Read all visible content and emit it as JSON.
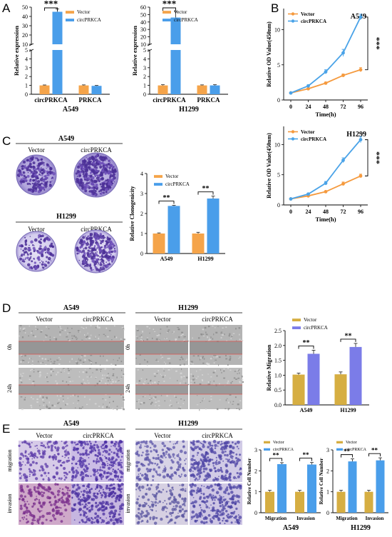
{
  "panels": {
    "A": {
      "letter": "A"
    },
    "B": {
      "letter": "B"
    },
    "C": {
      "letter": "C",
      "headers": [
        "Vector",
        "circPRKCA"
      ],
      "cells": [
        "A549",
        "H1299"
      ]
    },
    "D": {
      "letter": "D",
      "cells": [
        "A549",
        "H1299"
      ],
      "headers": [
        "Vector",
        "circPRKCA"
      ],
      "rows": [
        "0h",
        "24h"
      ]
    },
    "E": {
      "letter": "E",
      "cells": [
        "A549",
        "H1299"
      ],
      "headers": [
        "Vector",
        "circPRKCA"
      ],
      "rows": [
        "migration",
        "invasion"
      ]
    }
  },
  "colors": {
    "vector": "#F5A44A",
    "circ": "#4A9EEA",
    "vector_d": "#D6AE42",
    "circ_d": "#7B7CE8",
    "line_vector": "#F59A3E",
    "line_circ": "#4AA3E8"
  },
  "chart_data": [
    {
      "id": "A-left",
      "type": "bar",
      "title": "",
      "subtitle": "A549",
      "xlabel": "",
      "ylabel": "Relative expression",
      "categories": [
        "circPRKCA",
        "PRKCA"
      ],
      "series": [
        {
          "name": "Vector",
          "values": [
            1.0,
            1.0
          ],
          "errors": [
            0.05,
            0.06
          ]
        },
        {
          "name": "circPRKCA",
          "values": [
            45,
            0.95
          ],
          "errors": [
            3,
            0.05
          ]
        }
      ],
      "broken_axis": true,
      "ylim_low": [
        0,
        5
      ],
      "ylim_high": [
        10,
        50
      ],
      "yticks_low": [
        0,
        1,
        2,
        3,
        4,
        5
      ],
      "yticks_high": [
        10,
        20,
        30,
        40,
        50
      ],
      "significance": "***",
      "legend": "top-right"
    },
    {
      "id": "A-right",
      "type": "bar",
      "title": "",
      "subtitle": "H1299",
      "xlabel": "",
      "ylabel": "Relative expression",
      "categories": [
        "circPRKCA",
        "PRKCA"
      ],
      "series": [
        {
          "name": "Vector",
          "values": [
            1.0,
            1.0
          ],
          "errors": [
            0.08,
            0.06
          ]
        },
        {
          "name": "circPRKCA",
          "values": [
            46,
            1.0
          ],
          "errors": [
            8,
            0.08
          ]
        }
      ],
      "broken_axis": true,
      "ylim_low": [
        0,
        5
      ],
      "ylim_high": [
        10,
        60
      ],
      "yticks_low": [
        0,
        1,
        2,
        3,
        4,
        5
      ],
      "yticks_high": [
        10,
        20,
        30,
        40,
        50,
        60
      ],
      "significance": "***",
      "legend": "top-right"
    },
    {
      "id": "B-top",
      "type": "line",
      "title": "A549",
      "xlabel": "Time(h)",
      "ylabel": "Relative OD Value(450nm)",
      "x": [
        0,
        24,
        48,
        72,
        96
      ],
      "ylim": [
        0,
        13
      ],
      "yticks": [
        0,
        5,
        10
      ],
      "series": [
        {
          "name": "Vector",
          "values": [
            1.0,
            1.6,
            2.4,
            3.5,
            4.3
          ],
          "errors": [
            0.05,
            0.1,
            0.15,
            0.2,
            0.3
          ]
        },
        {
          "name": "circPRKCA",
          "values": [
            1.0,
            2.0,
            4.0,
            6.7,
            11.8
          ],
          "errors": [
            0.05,
            0.15,
            0.3,
            0.5,
            0.4
          ]
        }
      ],
      "significance": "***",
      "legend": "top-left"
    },
    {
      "id": "B-bottom",
      "type": "line",
      "title": "H1299",
      "xlabel": "Time(h)",
      "ylabel": "Relative OD Value(450nm)",
      "x": [
        0,
        24,
        48,
        72,
        96
      ],
      "ylim": [
        0,
        13
      ],
      "yticks": [
        0,
        5,
        10
      ],
      "series": [
        {
          "name": "Vector",
          "values": [
            1.0,
            1.5,
            2.2,
            3.5,
            4.8
          ],
          "errors": [
            0.05,
            0.1,
            0.15,
            0.3,
            0.3
          ]
        },
        {
          "name": "circPRKCA",
          "values": [
            1.0,
            1.8,
            3.6,
            7.4,
            10.8
          ],
          "errors": [
            0.05,
            0.15,
            0.3,
            0.4,
            0.5
          ]
        }
      ],
      "significance": "***",
      "legend": "top-left"
    },
    {
      "id": "C-chart",
      "type": "bar",
      "title": "",
      "xlabel": "",
      "ylabel": "Relative Clonogenicity",
      "categories": [
        "A549",
        "H1299"
      ],
      "ylim": [
        0,
        4
      ],
      "yticks": [
        0,
        1,
        2,
        3,
        4
      ],
      "series": [
        {
          "name": "Vector",
          "values": [
            1.0,
            1.0
          ],
          "errors": [
            0.03,
            0.06
          ]
        },
        {
          "name": "circPRKCA",
          "values": [
            2.38,
            2.75
          ],
          "errors": [
            0.03,
            0.12
          ]
        }
      ],
      "significance": [
        "**",
        "**"
      ],
      "legend": "top-left"
    },
    {
      "id": "D-chart",
      "type": "bar",
      "title": "",
      "xlabel": "",
      "ylabel": "Relative Migration",
      "categories": [
        "A549",
        "H1299"
      ],
      "ylim": [
        0,
        2.5
      ],
      "yticks": [
        0.0,
        0.5,
        1.0,
        1.5,
        2.0,
        2.5
      ],
      "series": [
        {
          "name": "Vector",
          "values": [
            1.02,
            1.03
          ],
          "errors": [
            0.05,
            0.08
          ]
        },
        {
          "name": "circPRKCA",
          "values": [
            1.72,
            1.95
          ],
          "errors": [
            0.12,
            0.12
          ]
        }
      ],
      "significance": [
        "**",
        "**"
      ],
      "legend": "top-left"
    },
    {
      "id": "E-left",
      "type": "bar",
      "title": "",
      "subtitle": "A549",
      "xlabel": "",
      "ylabel": "Relative Cell Number",
      "categories": [
        "Migration",
        "Invasion"
      ],
      "ylim": [
        0,
        3
      ],
      "yticks": [
        0,
        1,
        2,
        3
      ],
      "series": [
        {
          "name": "Vector",
          "values": [
            1.0,
            1.0
          ],
          "errors": [
            0.07,
            0.07
          ]
        },
        {
          "name": "circPRKCA",
          "values": [
            2.32,
            2.3
          ],
          "errors": [
            0.07,
            0.1
          ]
        }
      ],
      "significance": [
        "**",
        "**"
      ],
      "legend": "top-left"
    },
    {
      "id": "E-right",
      "type": "bar",
      "title": "",
      "subtitle": "H1299",
      "xlabel": "",
      "ylabel": "Relative Cell Number",
      "categories": [
        "Migration",
        "Invasion"
      ],
      "ylim": [
        0,
        3
      ],
      "yticks": [
        0,
        1,
        2,
        3
      ],
      "series": [
        {
          "name": "Vector",
          "values": [
            1.0,
            1.0
          ],
          "errors": [
            0.07,
            0.07
          ]
        },
        {
          "name": "circPRKCA",
          "values": [
            2.45,
            2.5
          ],
          "errors": [
            0.12,
            0.12
          ]
        }
      ],
      "significance": [
        "**",
        "**"
      ],
      "legend": "top-left"
    }
  ]
}
